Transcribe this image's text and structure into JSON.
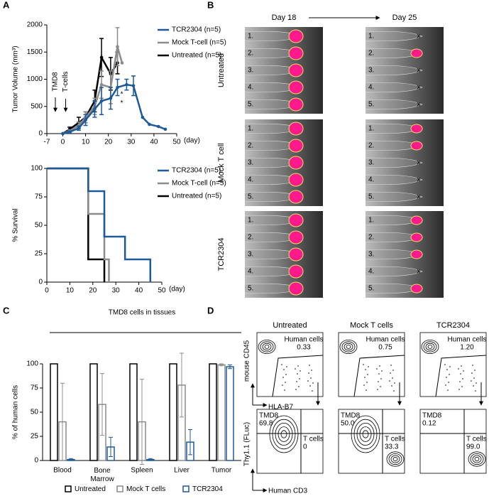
{
  "panels": [
    "A",
    "B",
    "C",
    "D"
  ],
  "chart_data": [
    {
      "type": "line",
      "y_label": "Tumor Volume (mm³)",
      "x_label": "(day)",
      "xlim": [
        -7,
        50
      ],
      "xticks": [
        -7,
        0,
        10,
        20,
        30,
        40,
        50
      ],
      "ylim": [
        0,
        2000
      ],
      "yticks": [
        0,
        500,
        1000,
        1500,
        2000
      ],
      "annotations": [
        "TMD8",
        "T-cells",
        "*",
        "*"
      ],
      "series": [
        {
          "name": "TCR2304 (n=5)",
          "color": "#1d5a9a",
          "x": [
            0,
            3,
            7,
            10,
            14,
            17,
            21,
            24,
            28,
            31,
            35,
            38,
            42,
            45
          ],
          "values": [
            0,
            30,
            100,
            250,
            450,
            600,
            650,
            850,
            900,
            880,
            300,
            170,
            130,
            80
          ],
          "errors": [
            0,
            20,
            40,
            100,
            150,
            250,
            200,
            150,
            100,
            180,
            0,
            0,
            0,
            0
          ]
        },
        {
          "name": "Mock T-cell (n=5)",
          "color": "#8c8c8c",
          "x": [
            0,
            3,
            7,
            10,
            14,
            17,
            21,
            24,
            26
          ],
          "values": [
            0,
            50,
            150,
            300,
            500,
            900,
            850,
            1600,
            1300
          ],
          "errors": [
            0,
            20,
            60,
            100,
            150,
            250,
            300,
            350,
            0
          ]
        },
        {
          "name": "Untreated (n=5)",
          "color": "#000000",
          "x": [
            0,
            3,
            7,
            10,
            14,
            17,
            21,
            24
          ],
          "values": [
            0,
            80,
            200,
            300,
            600,
            1400,
            1100,
            1300
          ],
          "errors": [
            0,
            40,
            100,
            100,
            200,
            350,
            300,
            200
          ]
        }
      ]
    },
    {
      "type": "step",
      "y_label": "% Survival",
      "x_label": "(day)",
      "xlim": [
        0,
        50
      ],
      "xticks": [
        0,
        10,
        20,
        30,
        40,
        50
      ],
      "ylim": [
        0,
        100
      ],
      "yticks": [
        0,
        25,
        50,
        75,
        100
      ],
      "series": [
        {
          "name": "TCR2304 (n=5)",
          "color": "#1d5a9a",
          "x": [
            0,
            18,
            18,
            25,
            25,
            34,
            34,
            45,
            45
          ],
          "values": [
            100,
            100,
            80,
            80,
            40,
            40,
            20,
            20,
            0
          ]
        },
        {
          "name": "Mock T-cell (n=5)",
          "color": "#8c8c8c",
          "x": [
            0,
            18,
            18,
            25,
            25,
            27,
            27
          ],
          "values": [
            100,
            100,
            60,
            60,
            20,
            20,
            0
          ]
        },
        {
          "name": "Untreated (n=5)",
          "color": "#000000",
          "x": [
            0,
            18,
            18,
            25,
            25
          ],
          "values": [
            100,
            100,
            20,
            20,
            0
          ]
        }
      ]
    },
    {
      "type": "bar",
      "title": "TMD8 cells in tissues",
      "y_label": "% of human cells",
      "categories": [
        "Blood",
        "Bone Marrow",
        "Spleen",
        "Liver",
        "Tumor"
      ],
      "ylim": [
        0,
        100
      ],
      "yticks": [
        0,
        25,
        50,
        75,
        100
      ],
      "series": [
        {
          "name": "Untreated",
          "color": "#000000",
          "values": [
            100,
            100,
            100,
            100,
            100
          ],
          "errors": [
            0,
            0,
            0,
            0,
            0
          ]
        },
        {
          "name": "Mock T cells",
          "color": "#8c8c8c",
          "values": [
            40,
            58,
            40,
            78,
            99
          ],
          "errors": [
            40,
            32,
            44,
            33,
            1
          ]
        },
        {
          "name": "TCR2304",
          "color": "#1d5a9a",
          "values": [
            1,
            14,
            1,
            19,
            97
          ],
          "errors": [
            1,
            10,
            1,
            13,
            2
          ]
        }
      ]
    }
  ],
  "imaging": {
    "columns": [
      "Day 18",
      "Day 25"
    ],
    "mouse_labels": [
      "1.",
      "2.",
      "3.",
      "4.",
      "5."
    ],
    "rows": [
      {
        "label": "Untreated",
        "day25_marks": [
          "x",
          null,
          "x",
          "x",
          "x"
        ]
      },
      {
        "label": "Mock T cell",
        "day25_marks": [
          null,
          null,
          "x",
          "x",
          "x"
        ]
      },
      {
        "label": "TCR2304",
        "day25_marks": [
          null,
          null,
          null,
          "x",
          null
        ]
      }
    ]
  },
  "flow": {
    "top_y": "mouse CD45",
    "top_x": "HLA-B7",
    "bottom_y": "Thy1.1 (FLuc)",
    "bottom_x": "Human CD3",
    "columns": [
      {
        "title": "Untreated",
        "gate_label": "Human cells",
        "gate_value": "0.33",
        "tmd8_label": "TMD8",
        "tmd8_value": "69.8",
        "t_label": "T cells",
        "t_value": "0"
      },
      {
        "title": "Mock T cells",
        "gate_label": "Human cells",
        "gate_value": "0.75",
        "tmd8_label": "TMD8",
        "tmd8_value": "50.0",
        "t_label": "T cells",
        "t_value": "33.3"
      },
      {
        "title": "TCR2304",
        "gate_label": "Human cells",
        "gate_value": "1.20",
        "tmd8_label": "TMD8",
        "tmd8_value": "0.12",
        "t_label": "T cells",
        "t_value": "99.0"
      }
    ]
  }
}
